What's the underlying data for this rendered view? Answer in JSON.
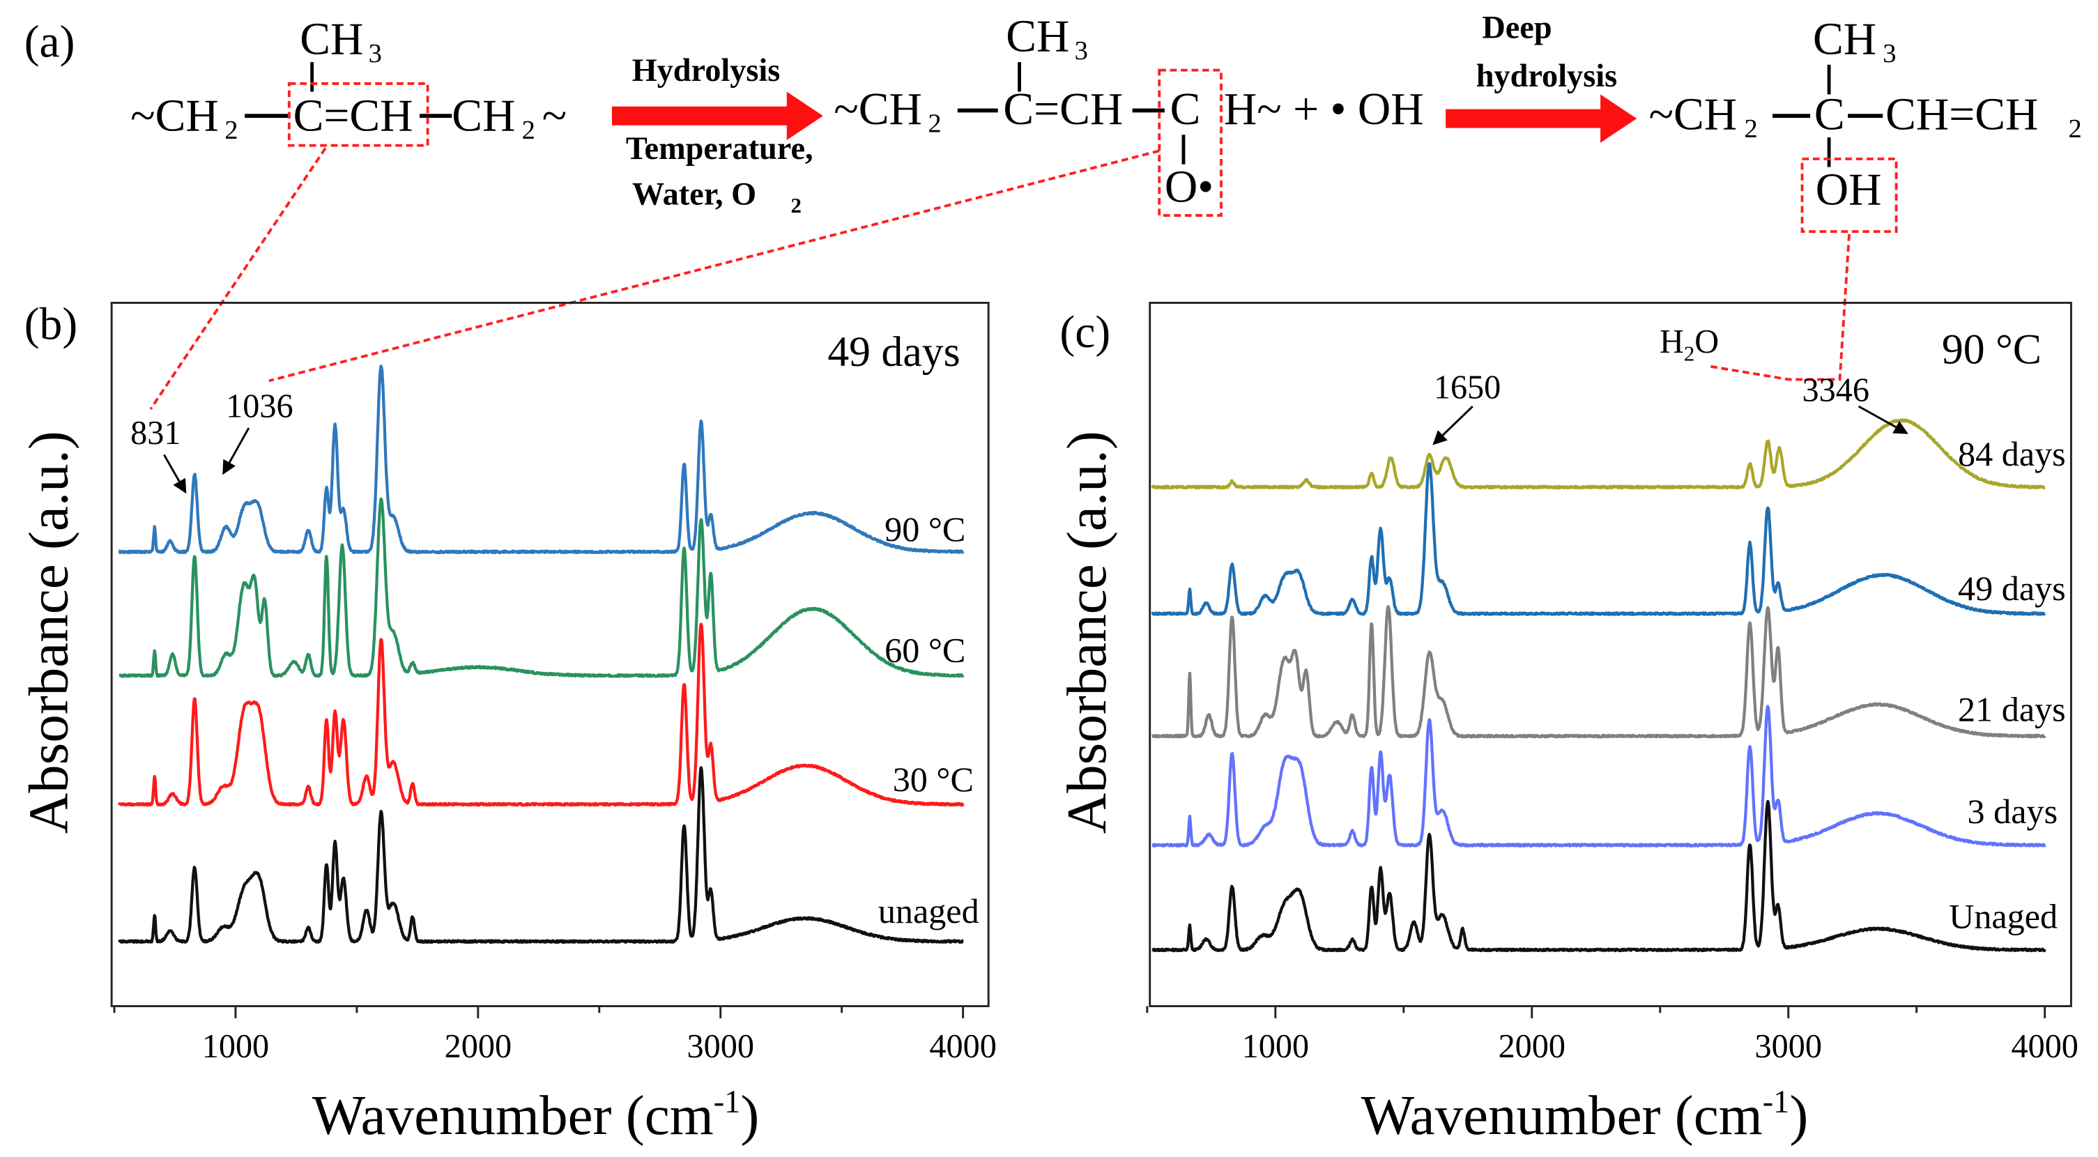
{
  "scheme": {
    "panel_label": "(a)",
    "reactant": {
      "left": "~CH",
      "left_sub": "2",
      "center": "C=CH",
      "right": "CH",
      "right_sub": "2",
      "tail": "~",
      "methyl": "CH",
      "methyl_sub": "3"
    },
    "step1": {
      "label_top": "Hydrolysis",
      "label_mid": "Temperature,",
      "label_bottom": "Water, O",
      "label_bottom_sub": "2"
    },
    "intermediate": {
      "left": "~CH",
      "left_sub": "2",
      "center": "C=CH",
      "carbon": "C",
      "tail": "H~ + • OH",
      "methyl": "CH",
      "methyl_sub": "3",
      "oxy": "O•"
    },
    "step2": {
      "label_top": "Deep",
      "label_bottom": "hydrolysis"
    },
    "product": {
      "left": "~CH",
      "left_sub": "2",
      "carbon": "C",
      "right": "CH=CH",
      "right_sub": "2",
      "methyl": "CH",
      "methyl_sub": "3",
      "hydroxyl": "OH"
    },
    "colors": {
      "arrow": "#ff1010",
      "highlight": "#ff2020"
    }
  },
  "chart_data": [
    {
      "type": "line",
      "panel_label": "(b)",
      "title": "49 days",
      "xlabel": "Wavenumber (cm",
      "xlabel_sup": "-1",
      "xlabel_close": ")",
      "ylabel": "Absorbance (a.u.)",
      "xlim": [
        490,
        4100
      ],
      "ylim": [
        0,
        10
      ],
      "xticks": [
        1000,
        2000,
        3000,
        4000
      ],
      "xtick_labels": [
        "1000",
        "2000",
        "3000",
        "4000"
      ],
      "x_start": 520,
      "annotations": [
        {
          "text": "831",
          "x": 831
        },
        {
          "text": "1036",
          "x": 1036
        }
      ],
      "series": [
        {
          "name": "unaged",
          "color": "#111111",
          "baseline": 0.92,
          "peaks": [
            [
              666,
              0.38,
              4
            ],
            [
              730,
              0.15,
              15
            ],
            [
              831,
              1.05,
              11
            ],
            [
              950,
              0.2,
              25
            ],
            [
              1036,
              0.7,
              30
            ],
            [
              1095,
              0.85,
              28
            ],
            [
              1300,
              0.2,
              10
            ],
            [
              1375,
              1.1,
              9
            ],
            [
              1410,
              1.4,
              10
            ],
            [
              1445,
              0.9,
              12
            ],
            [
              1540,
              0.45,
              14
            ],
            [
              1600,
              1.8,
              13
            ],
            [
              1650,
              0.55,
              22
            ],
            [
              1730,
              0.35,
              8
            ],
            [
              2850,
              1.65,
              11
            ],
            [
              2920,
              2.45,
              13
            ],
            [
              2960,
              0.7,
              10
            ],
            [
              3350,
              0.33,
              170
            ]
          ]
        },
        {
          "name": "30 °C",
          "color": "#ff1a1a",
          "baseline": 2.87,
          "peaks": [
            [
              666,
              0.4,
              4
            ],
            [
              740,
              0.15,
              15
            ],
            [
              831,
              1.5,
              11
            ],
            [
              950,
              0.25,
              25
            ],
            [
              1036,
              1.25,
              28
            ],
            [
              1095,
              1.25,
              28
            ],
            [
              1300,
              0.25,
              10
            ],
            [
              1375,
              1.2,
              9
            ],
            [
              1410,
              1.3,
              10
            ],
            [
              1445,
              1.2,
              12
            ],
            [
              1540,
              0.4,
              14
            ],
            [
              1600,
              2.3,
              13
            ],
            [
              1650,
              0.6,
              22
            ],
            [
              1730,
              0.3,
              8
            ],
            [
              2850,
              1.7,
              11
            ],
            [
              2920,
              2.55,
              13
            ],
            [
              2960,
              0.8,
              10
            ],
            [
              3350,
              0.55,
              170
            ]
          ]
        },
        {
          "name": "60 °C",
          "color": "#2a9160",
          "baseline": 4.7,
          "peaks": [
            [
              666,
              0.35,
              4
            ],
            [
              740,
              0.3,
              12
            ],
            [
              831,
              1.7,
              11
            ],
            [
              960,
              0.3,
              20
            ],
            [
              1036,
              1.3,
              25
            ],
            [
              1080,
              1.1,
              15
            ],
            [
              1120,
              1.05,
              12
            ],
            [
              1240,
              0.2,
              20
            ],
            [
              1300,
              0.3,
              10
            ],
            [
              1375,
              1.7,
              8
            ],
            [
              1440,
              1.85,
              13
            ],
            [
              1600,
              2.45,
              16
            ],
            [
              1650,
              0.6,
              22
            ],
            [
              1730,
              0.15,
              10
            ],
            [
              2000,
              0.12,
              160
            ],
            [
              2850,
              1.8,
              11
            ],
            [
              2920,
              2.2,
              13
            ],
            [
              2960,
              1.4,
              10
            ],
            [
              3380,
              0.95,
              170
            ]
          ]
        },
        {
          "name": "90 °C",
          "color": "#2f78bd",
          "baseline": 6.46,
          "peaks": [
            [
              666,
              0.35,
              4
            ],
            [
              730,
              0.15,
              12
            ],
            [
              831,
              1.1,
              11
            ],
            [
              960,
              0.35,
              20
            ],
            [
              1036,
              0.6,
              25
            ],
            [
              1090,
              0.65,
              25
            ],
            [
              1300,
              0.3,
              12
            ],
            [
              1375,
              0.9,
              9
            ],
            [
              1410,
              1.8,
              11
            ],
            [
              1445,
              0.6,
              12
            ],
            [
              1600,
              2.6,
              15
            ],
            [
              1650,
              0.5,
              22
            ],
            [
              2850,
              1.25,
              10
            ],
            [
              2920,
              1.85,
              12
            ],
            [
              2960,
              0.5,
              10
            ],
            [
              3380,
              0.55,
              170
            ]
          ]
        }
      ],
      "series_labels": [
        "unaged",
        "30 °C",
        "60 °C",
        "90 °C"
      ]
    },
    {
      "type": "line",
      "panel_label": "(c)",
      "title": "90 °C",
      "xlabel": "Wavenumber (cm",
      "xlabel_sup": "-1",
      "xlabel_close": ")",
      "ylabel": "Absorbance (a.u.)",
      "xlim": [
        490,
        4100
      ],
      "ylim": [
        0,
        10
      ],
      "xticks": [
        1000,
        2000,
        3000,
        4000
      ],
      "xtick_labels": [
        "1000",
        "2000",
        "3000",
        "4000"
      ],
      "x_start": 520,
      "annotations": [
        {
          "text": "1650",
          "x": 1650
        },
        {
          "text": "3346",
          "x": 3346
        },
        {
          "text": "H",
          "sub": "2",
          "tail": "O"
        }
      ],
      "series": [
        {
          "name": "Unaged",
          "color": "#111111",
          "baseline": 0.8,
          "peaks": [
            [
              666,
              0.35,
              4
            ],
            [
              730,
              0.15,
              15
            ],
            [
              831,
              0.9,
              11
            ],
            [
              950,
              0.2,
              25
            ],
            [
              1036,
              0.6,
              30
            ],
            [
              1095,
              0.75,
              28
            ],
            [
              1300,
              0.15,
              10
            ],
            [
              1375,
              0.9,
              9
            ],
            [
              1410,
              1.15,
              10
            ],
            [
              1445,
              0.8,
              12
            ],
            [
              1540,
              0.4,
              14
            ],
            [
              1600,
              1.6,
              13
            ],
            [
              1650,
              0.5,
              22
            ],
            [
              1730,
              0.3,
              8
            ],
            [
              2850,
              1.5,
              11
            ],
            [
              2920,
              2.1,
              13
            ],
            [
              2960,
              0.6,
              10
            ],
            [
              3350,
              0.3,
              170
            ]
          ]
        },
        {
          "name": "3 days",
          "color": "#6272ff",
          "baseline": 2.29,
          "peaks": [
            [
              666,
              0.4,
              4
            ],
            [
              740,
              0.15,
              15
            ],
            [
              831,
              1.3,
              11
            ],
            [
              960,
              0.25,
              25
            ],
            [
              1036,
              1.1,
              28
            ],
            [
              1095,
              1.05,
              28
            ],
            [
              1300,
              0.2,
              10
            ],
            [
              1375,
              1.1,
              9
            ],
            [
              1410,
              1.3,
              10
            ],
            [
              1445,
              1.0,
              12
            ],
            [
              1600,
              1.75,
              13
            ],
            [
              1650,
              0.5,
              22
            ],
            [
              2850,
              1.4,
              11
            ],
            [
              2920,
              1.95,
              13
            ],
            [
              2960,
              0.6,
              10
            ],
            [
              3350,
              0.45,
              170
            ]
          ]
        },
        {
          "name": "21 days",
          "color": "#808080",
          "baseline": 3.84,
          "peaks": [
            [
              666,
              0.9,
              4
            ],
            [
              740,
              0.3,
              12
            ],
            [
              831,
              1.7,
              11
            ],
            [
              960,
              0.3,
              20
            ],
            [
              1036,
              1.1,
              25
            ],
            [
              1080,
              0.95,
              15
            ],
            [
              1120,
              0.9,
              12
            ],
            [
              1240,
              0.2,
              20
            ],
            [
              1300,
              0.3,
              10
            ],
            [
              1375,
              1.6,
              8
            ],
            [
              1440,
              1.85,
              13
            ],
            [
              1600,
              1.15,
              18
            ],
            [
              1650,
              0.5,
              22
            ],
            [
              2850,
              1.6,
              12
            ],
            [
              2920,
              1.8,
              14
            ],
            [
              2960,
              1.2,
              10
            ],
            [
              3350,
              0.45,
              170
            ]
          ]
        },
        {
          "name": "49 days",
          "color": "#1f6fb2",
          "baseline": 5.58,
          "peaks": [
            [
              666,
              0.35,
              4
            ],
            [
              730,
              0.15,
              12
            ],
            [
              831,
              0.7,
              11
            ],
            [
              960,
              0.25,
              20
            ],
            [
              1036,
              0.5,
              25
            ],
            [
              1090,
              0.55,
              25
            ],
            [
              1300,
              0.2,
              12
            ],
            [
              1375,
              0.8,
              9
            ],
            [
              1410,
              1.2,
              11
            ],
            [
              1445,
              0.5,
              12
            ],
            [
              1600,
              2.1,
              15
            ],
            [
              1650,
              0.45,
              22
            ],
            [
              2850,
              1.0,
              10
            ],
            [
              2920,
              1.5,
              12
            ],
            [
              2960,
              0.4,
              10
            ],
            [
              3370,
              0.55,
              170
            ]
          ]
        },
        {
          "name": "84 days",
          "color": "#a9a62a",
          "baseline": 7.38,
          "peaks": [
            [
              831,
              0.08,
              8
            ],
            [
              1120,
              0.1,
              12
            ],
            [
              1375,
              0.2,
              8
            ],
            [
              1450,
              0.42,
              14
            ],
            [
              1600,
              0.45,
              16
            ],
            [
              1665,
              0.42,
              22
            ],
            [
              2850,
              0.33,
              10
            ],
            [
              2920,
              0.65,
              12
            ],
            [
              2965,
              0.55,
              12
            ],
            [
              3440,
              0.95,
              150
            ]
          ]
        }
      ],
      "series_labels": [
        "Unaged",
        "3 days",
        "21 days",
        "49 days",
        "84 days"
      ]
    }
  ]
}
